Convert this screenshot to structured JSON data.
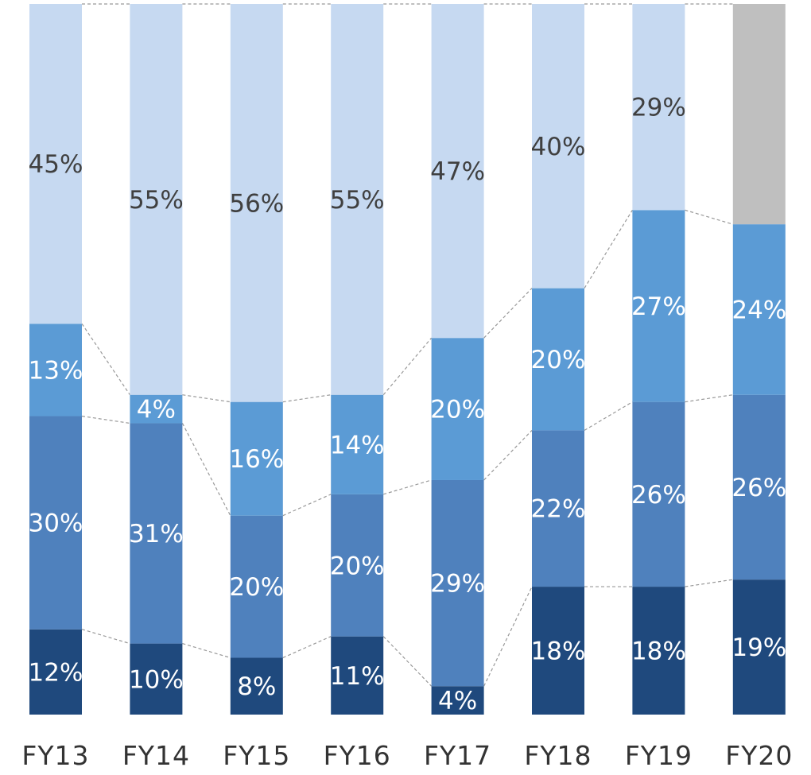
{
  "chart_data": {
    "type": "bar",
    "stacked": true,
    "percent_stacked": true,
    "title": "",
    "xlabel": "",
    "ylabel": "",
    "categories": [
      "FY13",
      "FY14",
      "FY15",
      "FY16",
      "FY17",
      "FY18",
      "FY19",
      "FY20"
    ],
    "series": [
      {
        "color": "#1F497D",
        "label_color": "#ffffff",
        "values": [
          12,
          10,
          8,
          11,
          4,
          18,
          18,
          19
        ]
      },
      {
        "color": "#4F81BD",
        "label_color": "#ffffff",
        "values": [
          30,
          31,
          20,
          20,
          29,
          22,
          26,
          26
        ]
      },
      {
        "color": "#5B9BD5",
        "label_color": "#ffffff",
        "values": [
          13,
          4,
          16,
          14,
          20,
          20,
          27,
          24
        ]
      },
      {
        "color": "#C6D9F1",
        "label_color": "#404040",
        "values": [
          45,
          55,
          56,
          55,
          47,
          40,
          29,
          null
        ]
      }
    ],
    "remainder_color": "#BFBFBF",
    "labels": [
      [
        "12%",
        "10%",
        "8%",
        "11%",
        "4%",
        "18%",
        "18%",
        "19%"
      ],
      [
        "30%",
        "31%",
        "20%",
        "20%",
        "29%",
        "22%",
        "26%",
        "26%"
      ],
      [
        "13%",
        "4%",
        "16%",
        "14%",
        "20%",
        "20%",
        "27%",
        "24%"
      ],
      [
        "45%",
        "55%",
        "56%",
        "55%",
        "47%",
        "40%",
        "29%",
        ""
      ]
    ],
    "ylim": [
      0,
      100
    ],
    "connector_lines": true,
    "grid": false,
    "legend": "none"
  }
}
